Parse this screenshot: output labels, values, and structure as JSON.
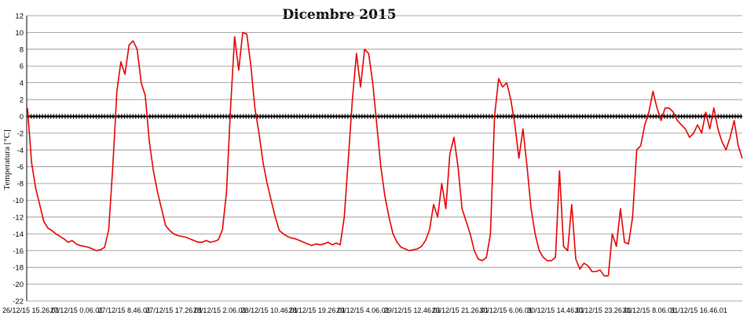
{
  "chart_data": {
    "type": "line",
    "title": "Dicembre 2015",
    "xlabel": "",
    "ylabel": "Temperatura [°C]",
    "ylim": [
      -22,
      12
    ],
    "yticks": [
      12,
      10,
      8,
      6,
      4,
      2,
      0,
      -2,
      -4,
      -6,
      -8,
      -10,
      -12,
      -14,
      -16,
      -18,
      -20,
      -22
    ],
    "grid": true,
    "legend": "none",
    "x_tick_labels": [
      "26/12/15 15.26.01",
      "27/12/15 0.06.01",
      "27/12/15 8.46.01",
      "27/12/15 17.26.01",
      "28/12/15 2.06.01",
      "28/12/15 10.46.01",
      "28/12/15 19.26.01",
      "29/12/15 4.06.01",
      "29/12/15 12.46.01",
      "29/12/15 21.26.01",
      "30/12/15 6.06.01",
      "30/12/15 14.46.01",
      "30/12/15 23.26.01",
      "31/12/15 8.06.01",
      "31/12/15 16.46.01"
    ],
    "colors": {
      "temperature": "#e60000",
      "zero_line": "#000000",
      "grid": "#8c8c8c"
    },
    "series": [
      {
        "values": [
          1.0,
          -5.5,
          -8.5,
          -10.5,
          -12.5,
          -13.3,
          -13.6,
          -14.0,
          -14.3,
          -14.6,
          -15.0,
          -14.8,
          -15.2,
          -15.4,
          -15.5,
          -15.6,
          -15.8,
          -16.0,
          -15.9,
          -15.6,
          -13.5,
          -6.0,
          3.0,
          6.5,
          5.0,
          8.5,
          9.0,
          8.0,
          4.0,
          2.5,
          -3.0,
          -6.5,
          -9.0,
          -11.0,
          -13.0,
          -13.6,
          -14.0,
          -14.2,
          -14.3,
          -14.4,
          -14.6,
          -14.8,
          -15.0,
          -15.0,
          -14.8,
          -15.0,
          -14.9,
          -14.7,
          -13.5,
          -9.0,
          1.0,
          9.5,
          5.5,
          10.0,
          9.8,
          6.0,
          1.0,
          -2.0,
          -5.5,
          -8.0,
          -10.0,
          -12.0,
          -13.6,
          -14.0,
          -14.3,
          -14.5,
          -14.6,
          -14.8,
          -15.0,
          -15.2,
          -15.4,
          -15.2,
          -15.3,
          -15.2,
          -15.0,
          -15.3,
          -15.1,
          -15.3,
          -12.0,
          -5.0,
          2.0,
          7.5,
          3.5,
          8.0,
          7.5,
          4.0,
          -1.0,
          -6.0,
          -9.5,
          -12.0,
          -14.0,
          -15.0,
          -15.6,
          -15.8,
          -16.0,
          -15.9,
          -15.8,
          -15.5,
          -14.8,
          -13.5,
          -10.5,
          -12.0,
          -8.0,
          -11.0,
          -4.5,
          -2.5,
          -6.0,
          -11.0,
          -12.5,
          -14.0,
          -16.0,
          -17.0,
          -17.2,
          -16.8,
          -14.0,
          0.0,
          4.5,
          3.5,
          4.0,
          2.0,
          -1.0,
          -5.0,
          -1.5,
          -6.0,
          -11.0,
          -14.0,
          -16.0,
          -16.8,
          -17.2,
          -17.2,
          -16.8,
          -6.5,
          -15.5,
          -16.0,
          -10.5,
          -17.0,
          -18.2,
          -17.5,
          -17.8,
          -18.5,
          -18.5,
          -18.3,
          -19.0,
          -19.0,
          -14.0,
          -15.5,
          -11.0,
          -15.0,
          -15.2,
          -12.0,
          -4.0,
          -3.5,
          -1.0,
          0.5,
          3.0,
          1.0,
          -0.5,
          1.0,
          1.0,
          0.5,
          -0.5,
          -1.0,
          -1.5,
          -2.5,
          -2.0,
          -1.0,
          -2.0,
          0.5,
          -1.5,
          1.0,
          -1.5,
          -3.0,
          -4.0,
          -2.5,
          -0.5,
          -3.5,
          -5.0
        ]
      },
      {
        "values": [
          0,
          0
        ]
      }
    ]
  }
}
